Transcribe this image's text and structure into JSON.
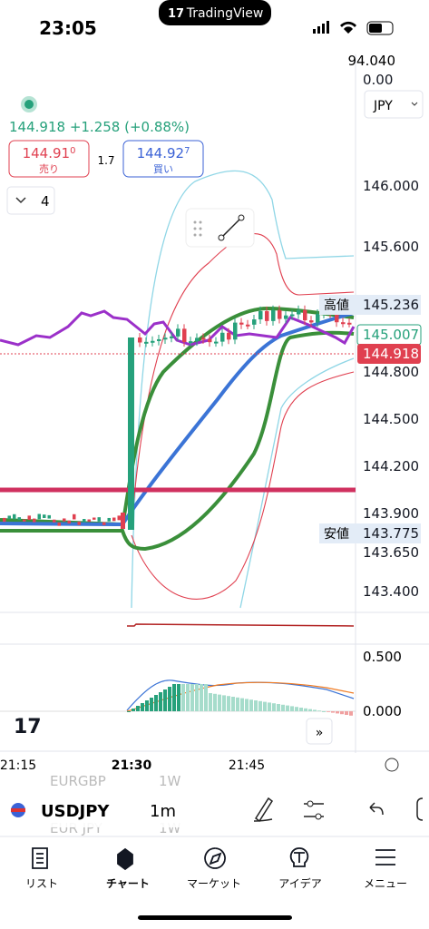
{
  "status_bar": {
    "time": "23:05",
    "app": "TradingView"
  },
  "quote": {
    "price": "144.918",
    "change": "+1.258",
    "change_pct": "(+0.88%)"
  },
  "sell": {
    "price": "144.91",
    "sup": "0",
    "label": "売り"
  },
  "spread": "1.7",
  "buy": {
    "price": "144.92",
    "sup": "7",
    "label": "買い"
  },
  "layout_count": "4",
  "currency": "JPY",
  "price_axis": [
    {
      "text": "94.040"
    },
    {
      "text": "0.00"
    },
    {
      "text": "146.000"
    },
    {
      "text": "145.600"
    },
    {
      "text": "145.236",
      "tag": "高値"
    },
    {
      "text": "145.007"
    },
    {
      "text": "144.918"
    },
    {
      "text": "144.800"
    },
    {
      "text": "144.500"
    },
    {
      "text": "144.200"
    },
    {
      "text": "143.900"
    },
    {
      "text": "143.775",
      "tag": "安値"
    },
    {
      "text": "143.650"
    },
    {
      "text": "143.400"
    }
  ],
  "indicator_axis": [
    "0.500",
    "0.000"
  ],
  "time_axis": [
    "21:15",
    "21:30",
    "21:45"
  ],
  "watchlist_ghost": [
    "EURGBP",
    "1W",
    "EUR JPY",
    "1W"
  ],
  "toolbar": {
    "symbol": "USDJPY",
    "interval": "1m"
  },
  "nav": [
    "リスト",
    "チャート",
    "マーケット",
    "アイデア",
    "メニュー"
  ]
}
